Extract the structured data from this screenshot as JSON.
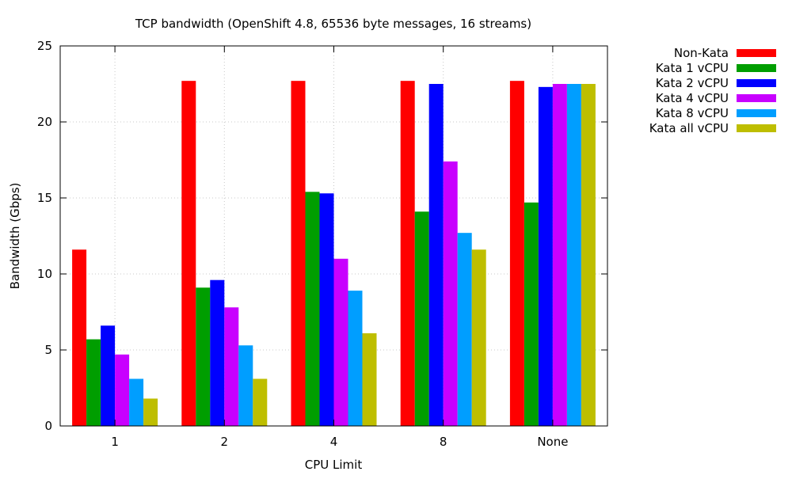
{
  "chart_data": {
    "type": "bar",
    "title": "TCP bandwidth  (OpenShift 4.8, 65536 byte messages, 16 streams)",
    "xlabel": "CPU Limit",
    "ylabel": "Bandwidth (Gbps)",
    "categories": [
      "1",
      "2",
      "4",
      "8",
      "None"
    ],
    "ylim": [
      0,
      25
    ],
    "yticks": [
      0,
      5,
      10,
      15,
      20,
      25
    ],
    "grid": true,
    "legend_position": "outside-right",
    "series": [
      {
        "name": "Non-Kata",
        "color": "#ff0000",
        "values": [
          11.6,
          22.7,
          22.7,
          22.7,
          22.7
        ]
      },
      {
        "name": "Kata 1 vCPU",
        "color": "#009e00",
        "values": [
          5.7,
          9.1,
          15.4,
          14.1,
          14.7
        ]
      },
      {
        "name": "Kata 2 vCPU",
        "color": "#0000ff",
        "values": [
          6.6,
          9.6,
          15.3,
          22.5,
          22.3
        ]
      },
      {
        "name": "Kata 4 vCPU",
        "color": "#c800ff",
        "values": [
          4.7,
          7.8,
          11.0,
          17.4,
          22.5
        ]
      },
      {
        "name": "Kata 8 vCPU",
        "color": "#009eff",
        "values": [
          3.1,
          5.3,
          8.9,
          12.7,
          22.5
        ]
      },
      {
        "name": "Kata all vCPU",
        "color": "#bebe00",
        "values": [
          1.8,
          3.1,
          6.1,
          11.6,
          22.5
        ]
      }
    ]
  }
}
